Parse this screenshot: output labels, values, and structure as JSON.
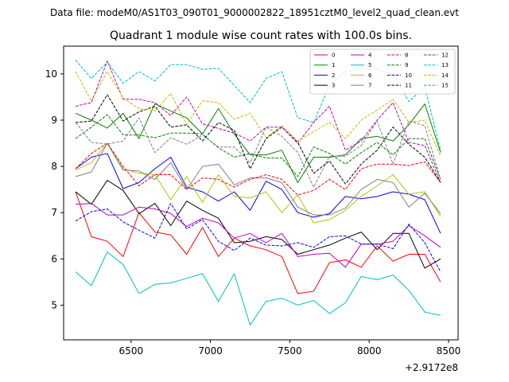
{
  "header": {
    "data_file": "Data file: modeM0/AS1T03_090T01_9000002822_18951cztM0_level2_quad_clean.evt"
  },
  "chart_data": {
    "type": "line",
    "title": "Quadrant 1 module wise count rates with 100.0s bins.",
    "xlabel": "",
    "ylabel": "",
    "x_offset_label": "+2.9172e8",
    "xlim": [
      6075,
      8560
    ],
    "ylim": [
      4.25,
      10.6
    ],
    "x_ticks": [
      6500,
      7000,
      7500,
      8000,
      8500
    ],
    "x_tick_labels": [
      "6500",
      "7000",
      "7500",
      "8000",
      "8500"
    ],
    "y_ticks": [
      5,
      6,
      7,
      8,
      9,
      10
    ],
    "y_tick_labels": [
      "5",
      "6",
      "7",
      "8",
      "9",
      "10"
    ],
    "legend_position": "top-right",
    "x": [
      6150,
      6250,
      6350,
      6450,
      6550,
      6650,
      6750,
      6850,
      6950,
      7050,
      7150,
      7250,
      7350,
      7450,
      7550,
      7650,
      7750,
      7850,
      7950,
      8050,
      8150,
      8250,
      8350,
      8450
    ],
    "series": [
      {
        "name": "0",
        "color": "#ff0000",
        "dash": "solid",
        "values": [
          7.45,
          6.48,
          6.38,
          6.05,
          7.0,
          6.58,
          6.52,
          6.1,
          6.68,
          6.05,
          6.45,
          6.28,
          6.2,
          6.05,
          5.25,
          5.3,
          5.92,
          5.98,
          5.82,
          6.28,
          5.95,
          6.1,
          6.1,
          5.5
        ]
      },
      {
        "name": "1",
        "color": "#008000",
        "dash": "solid",
        "values": [
          9.15,
          9.0,
          8.83,
          9.15,
          8.6,
          9.35,
          9.2,
          9.05,
          8.7,
          9.25,
          8.7,
          8.25,
          8.25,
          8.35,
          7.65,
          8.2,
          8.2,
          8.25,
          8.6,
          8.65,
          8.55,
          8.9,
          9.35,
          8.3
        ]
      },
      {
        "name": "2",
        "color": "#0000ff",
        "dash": "solid",
        "values": [
          7.95,
          8.2,
          8.28,
          7.52,
          7.65,
          7.95,
          8.2,
          7.55,
          7.45,
          7.25,
          7.45,
          7.05,
          7.68,
          7.5,
          7.0,
          6.9,
          6.98,
          7.35,
          7.3,
          7.35,
          7.45,
          7.4,
          7.28,
          6.55
        ]
      },
      {
        "name": "3",
        "color": "#000000",
        "dash": "solid",
        "values": [
          7.45,
          7.18,
          7.7,
          7.48,
          6.98,
          7.2,
          6.72,
          7.25,
          7.05,
          6.88,
          6.35,
          6.38,
          6.48,
          6.42,
          6.1,
          6.2,
          6.3,
          6.45,
          6.58,
          6.2,
          6.55,
          6.55,
          5.8,
          6.0
        ]
      },
      {
        "name": "4",
        "color": "#bf00bf",
        "dash": "solid",
        "values": [
          7.18,
          7.2,
          6.95,
          6.95,
          7.12,
          7.08,
          6.98,
          6.7,
          6.88,
          6.78,
          6.45,
          6.55,
          6.35,
          6.55,
          6.05,
          6.1,
          6.12,
          5.82,
          6.32,
          6.32,
          6.38,
          6.72,
          6.5,
          6.25
        ]
      },
      {
        "name": "5",
        "color": "#00bfbf",
        "dash": "solid",
        "values": [
          5.72,
          5.42,
          6.15,
          5.88,
          5.25,
          5.45,
          5.48,
          5.58,
          5.68,
          5.08,
          5.68,
          4.57,
          5.08,
          5.15,
          5.0,
          5.1,
          4.82,
          5.05,
          5.62,
          5.55,
          5.65,
          5.32,
          4.85,
          4.78
        ]
      },
      {
        "name": "6",
        "color": "#bfbf00",
        "dash": "solid",
        "values": [
          7.92,
          8.08,
          8.5,
          7.95,
          7.85,
          7.82,
          7.28,
          7.78,
          7.22,
          7.82,
          7.35,
          7.32,
          7.45,
          7.0,
          7.38,
          6.78,
          6.85,
          7.05,
          7.35,
          7.58,
          7.82,
          7.4,
          7.45,
          6.92
        ]
      },
      {
        "name": "7",
        "color": "#808080",
        "dash": "solid",
        "values": [
          7.78,
          7.88,
          8.5,
          7.92,
          7.9,
          7.72,
          8.08,
          7.5,
          8.0,
          8.05,
          7.6,
          7.75,
          7.75,
          7.65,
          7.12,
          6.95,
          6.95,
          7.1,
          7.5,
          7.72,
          7.65,
          7.12,
          7.42,
          6.98
        ]
      },
      {
        "name": "8",
        "color": "#ff0000",
        "dash": "dashed",
        "values": [
          7.95,
          8.28,
          8.5,
          8.0,
          7.58,
          7.82,
          7.82,
          7.5,
          7.75,
          7.72,
          7.55,
          7.72,
          7.82,
          7.72,
          7.38,
          7.48,
          7.72,
          7.5,
          7.95,
          8.05,
          8.05,
          8.02,
          8.1,
          7.65
        ]
      },
      {
        "name": "9",
        "color": "#008000",
        "dash": "dashed",
        "values": [
          8.6,
          8.85,
          9.12,
          8.68,
          8.68,
          8.62,
          8.72,
          8.72,
          8.7,
          8.4,
          8.2,
          8.28,
          8.18,
          8.18,
          7.78,
          8.42,
          8.28,
          8.05,
          8.3,
          8.52,
          8.25,
          8.6,
          8.6,
          7.72
        ]
      },
      {
        "name": "10",
        "color": "#0000ff",
        "dash": "dashed",
        "values": [
          6.82,
          7.02,
          7.08,
          6.8,
          6.62,
          6.45,
          7.2,
          6.65,
          6.85,
          6.38,
          6.18,
          6.45,
          6.3,
          6.28,
          6.35,
          6.25,
          6.48,
          6.5,
          6.32,
          6.32,
          6.22,
          6.75,
          6.35,
          5.72
        ]
      },
      {
        "name": "11",
        "color": "#000000",
        "dash": "dashed",
        "values": [
          8.95,
          8.98,
          9.55,
          8.98,
          9.18,
          9.3,
          8.85,
          8.9,
          8.55,
          8.95,
          8.78,
          7.95,
          8.6,
          8.85,
          8.52,
          7.85,
          8.12,
          7.62,
          8.05,
          8.35,
          8.85,
          8.48,
          8.2,
          7.65
        ]
      },
      {
        "name": "12",
        "color": "#bf00bf",
        "dash": "dashed",
        "values": [
          9.3,
          9.38,
          10.28,
          9.45,
          9.45,
          9.38,
          9.1,
          9.5,
          8.92,
          8.82,
          8.72,
          8.55,
          8.85,
          8.85,
          8.5,
          8.95,
          9.3,
          8.35,
          8.55,
          9.0,
          9.38,
          8.52,
          8.45,
          7.65
        ]
      },
      {
        "name": "13",
        "color": "#00bfbf",
        "dash": "dashed",
        "values": [
          10.3,
          9.9,
          10.25,
          9.8,
          10.05,
          9.85,
          10.2,
          10.2,
          10.1,
          10.12,
          9.75,
          9.38,
          9.9,
          10.05,
          9.05,
          8.95,
          9.75,
          10.05,
          10.12,
          10.1,
          10.0,
          9.4,
          9.72,
          8.35
        ]
      },
      {
        "name": "14",
        "color": "#bfbf00",
        "dash": "dashed",
        "values": [
          10.05,
          9.42,
          10.05,
          9.48,
          9.25,
          9.2,
          9.58,
          8.9,
          9.42,
          9.38,
          9.02,
          9.15,
          8.62,
          8.88,
          8.55,
          8.75,
          8.95,
          8.6,
          9.0,
          9.22,
          9.45,
          8.95,
          9.0,
          8.22
        ]
      },
      {
        "name": "15",
        "color": "#808080",
        "dash": "dashed",
        "values": [
          8.95,
          8.52,
          8.48,
          8.55,
          9.05,
          8.3,
          8.62,
          8.48,
          8.68,
          8.42,
          8.42,
          8.08,
          8.85,
          8.65,
          8.3,
          7.55,
          8.22,
          8.22,
          8.45,
          8.98,
          8.05,
          8.98,
          8.88,
          7.72
        ]
      }
    ]
  }
}
